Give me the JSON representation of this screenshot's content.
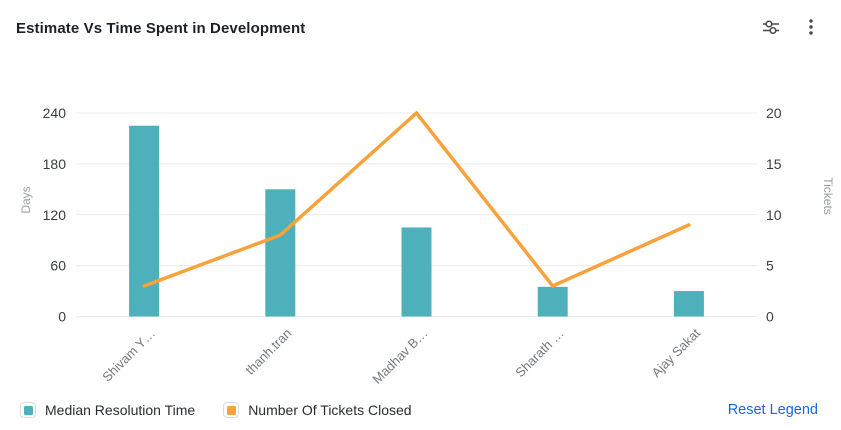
{
  "header": {
    "title": "Estimate Vs Time Spent in Development",
    "icons": [
      "sliders-icon",
      "kebab-menu-icon"
    ]
  },
  "colors": {
    "bar": "#4DB0BB",
    "line": "#F9A13B",
    "grid": "#ececec",
    "tick_text": "#3a3d43",
    "axis_name_text": "#9a9da3",
    "x_label_text": "#75787e",
    "link_blue": "#1868DB",
    "icon_gray": "#44474a"
  },
  "chart_data": {
    "type": "bar",
    "subtype": "combo-bar-line",
    "title": "Estimate Vs Time Spent in Development",
    "categories": [
      "Shivam Y…",
      "thanh.tran",
      "Madhav B…",
      "Sharath …",
      "Ajay Sakat"
    ],
    "series": [
      {
        "name": "Median Resolution Time",
        "type": "bar",
        "axis": "left",
        "color": "#4DB0BB",
        "values": [
          225,
          150,
          105,
          35,
          30
        ]
      },
      {
        "name": "Number Of Tickets Closed",
        "type": "line",
        "axis": "right",
        "color": "#F9A13B",
        "values": [
          3,
          8,
          20,
          3,
          9
        ]
      }
    ],
    "y_left": {
      "label": "Days",
      "min": 0,
      "max": 240,
      "ticks": [
        0,
        60,
        120,
        180,
        240
      ]
    },
    "y_right": {
      "label": "Tickets",
      "min": 0,
      "max": 20,
      "ticks": [
        0,
        5,
        10,
        15,
        20
      ]
    },
    "grid": true,
    "legend_position": "bottom",
    "xlabel": "",
    "ylabel": "Days / Tickets"
  },
  "legend": {
    "items": [
      {
        "label": "Median Resolution Time"
      },
      {
        "label": "Number Of Tickets Closed"
      }
    ],
    "reset_label": "Reset Legend"
  }
}
